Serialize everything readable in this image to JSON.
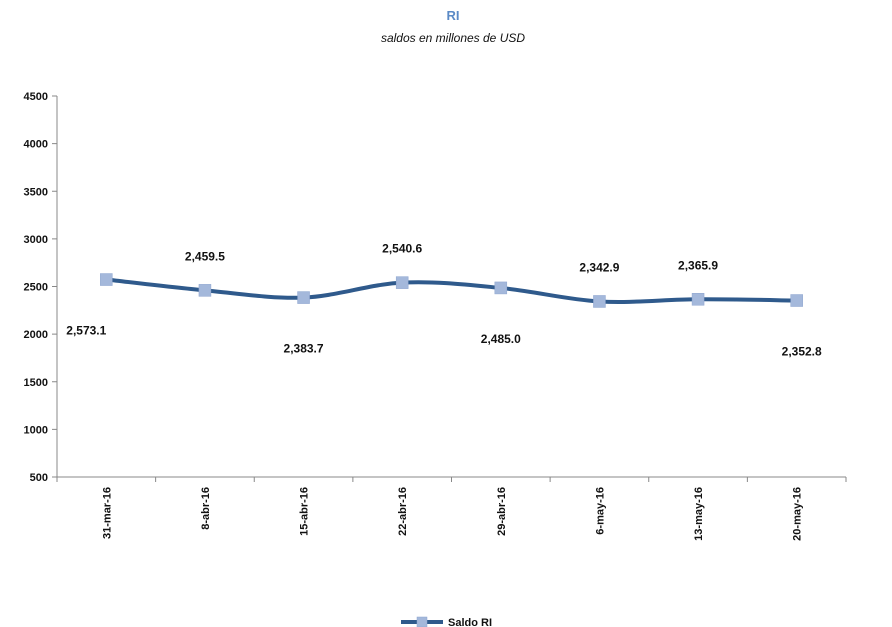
{
  "chart_data": {
    "type": "line",
    "title": "RI",
    "subtitle": "saldos en millones de USD",
    "categories": [
      "31-mar-16",
      "8-abr-16",
      "15-abr-16",
      "22-abr-16",
      "29-abr-16",
      "6-may-16",
      "13-may-16",
      "20-may-16"
    ],
    "series": [
      {
        "name": "Saldo RI",
        "values": [
          2573.1,
          2459.5,
          2383.7,
          2540.6,
          2485.0,
          2342.9,
          2365.9,
          2352.8
        ],
        "labels": [
          "2,573.1",
          "2,459.5",
          "2,383.7",
          "2,540.6",
          "2,485.0",
          "2,342.9",
          "2,365.9",
          "2,352.8"
        ],
        "label_positions": [
          "below",
          "above",
          "below",
          "above",
          "below",
          "above",
          "above",
          "below"
        ]
      }
    ],
    "ylim": [
      500,
      4500
    ],
    "yticks": [
      "500",
      "1000",
      "1500",
      "2000",
      "2500",
      "3000",
      "3500",
      "4000",
      "4500"
    ],
    "grid": false,
    "legend": "bottom-center",
    "colors": {
      "line": "#2f5a8c",
      "marker": "#a4b8db",
      "title": "#5b8ac6"
    }
  }
}
